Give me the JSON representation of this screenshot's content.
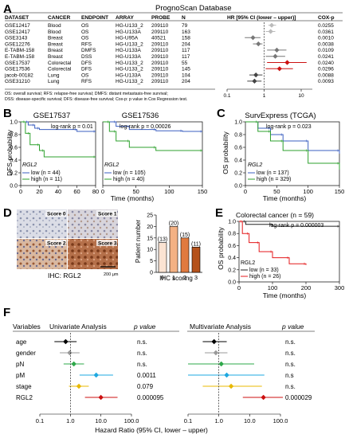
{
  "panel_a": {
    "letter": "A",
    "title": "PrognoScan Database",
    "headers": [
      "DATASET",
      "CANCER",
      "ENDPOINT",
      "ARRAY",
      "PROBE",
      "N"
    ],
    "hr_header": "HR [95% CI (lower – upper)]",
    "cox_header": "COX-p",
    "rows": [
      {
        "dataset": "GSE12417",
        "cancer": "Blood",
        "endpoint": "OS",
        "array": "HG-U133_2",
        "probe": "209110",
        "n": "79",
        "cox": "0.0255",
        "hr": 1.6,
        "lo": 1.3,
        "hi": 2.1,
        "color": "#bbbbbb"
      },
      {
        "dataset": "GSE12417",
        "cancer": "Blood",
        "endpoint": "OS",
        "array": "HG-U133A",
        "probe": "209110",
        "n": "163",
        "cox": "0.0361",
        "hr": 1.5,
        "lo": 1.1,
        "hi": 2.0,
        "color": "#bbbbbb"
      },
      {
        "dataset": "GSE3143",
        "cancer": "Breast",
        "endpoint": "OS",
        "array": "HG-U95A",
        "probe": "40521",
        "n": "158",
        "cox": "0.0010",
        "hr": 0.5,
        "lo": 0.3,
        "hi": 0.8,
        "color": "#777777"
      },
      {
        "dataset": "GSE12276",
        "cancer": "Breast",
        "endpoint": "RFS",
        "array": "HG-U133_2",
        "probe": "209110",
        "n": "204",
        "cox": "0.0038",
        "hr": 0.7,
        "lo": 0.5,
        "hi": 0.9,
        "color": "#777777"
      },
      {
        "dataset": "E-TABM-158",
        "cancer": "Breast",
        "endpoint": "DMFS",
        "array": "HG-U133A",
        "probe": "209110",
        "n": "117",
        "cox": "0.0109",
        "hr": 2.2,
        "lo": 1.2,
        "hi": 4.0,
        "color": "#777777"
      },
      {
        "dataset": "E-TABM-158",
        "cancer": "Breast",
        "endpoint": "DSS",
        "array": "HG-U133A",
        "probe": "209110",
        "n": "117",
        "cox": "0.0241",
        "hr": 2.0,
        "lo": 1.1,
        "hi": 3.7,
        "color": "#777777"
      },
      {
        "dataset": "GSE17537",
        "cancer": "Colorectal",
        "endpoint": "DFS",
        "array": "HG-U133_2",
        "probe": "209110",
        "n": "55",
        "cox": "0.0240",
        "hr": 4.2,
        "lo": 1.2,
        "hi": 14.0,
        "color": "#cc1111"
      },
      {
        "dataset": "GSE17536",
        "cancer": "Colorectal",
        "endpoint": "DFS",
        "array": "HG-U133_2",
        "probe": "209110",
        "n": "145",
        "cox": "0.0296",
        "hr": 2.6,
        "lo": 1.1,
        "hi": 6.0,
        "color": "#cc1111"
      },
      {
        "dataset": "jacob-00182",
        "cancer": "Lung",
        "endpoint": "OS",
        "array": "HG-U133A",
        "probe": "209110",
        "n": "104",
        "cox": "0.0088",
        "hr": 0.6,
        "lo": 0.4,
        "hi": 0.9,
        "color": "#444444"
      },
      {
        "dataset": "GSE31210",
        "cancer": "Lung",
        "endpoint": "RFS",
        "array": "HG-U133_2",
        "probe": "209110",
        "n": "204",
        "cox": "0.0093",
        "hr": 0.55,
        "lo": 0.35,
        "hi": 0.85,
        "color": "#444444"
      }
    ],
    "axis_ticks": [
      "0.1",
      "1",
      "10"
    ],
    "footnote_1": "OS: overall survival; RFS: relapse-free survival; DMFS: distant metastasis-free survival;",
    "footnote_2": "DSS: disease-specific survival; DFS: disease-free survival; Cox-p: p value in Cox Regression test."
  },
  "panel_b": {
    "letter": "B",
    "ylabel": "DFS probability",
    "xlabel": "Time (months)",
    "gene": "RGL2",
    "left": {
      "title": "GSE17537",
      "pvalue": "log-rank p = 0.01",
      "low": "low (n = 44)",
      "high": "high (n = 11)",
      "ticks": [
        "0",
        "20",
        "40",
        "60",
        "80"
      ]
    },
    "right": {
      "title": "GSE17536",
      "pvalue": "log-rank p = 0.00026",
      "low": "low (n = 105)",
      "high": "high (n = 40)",
      "ticks": [
        "0",
        "50",
        "100",
        "150"
      ]
    },
    "yticks": [
      "0.0",
      "0.2",
      "0.4",
      "0.6",
      "0.8",
      "1.0"
    ]
  },
  "panel_c": {
    "letter": "C",
    "title": "SurvExpress (TCGA)",
    "pvalue": "log-rank p = 0.023",
    "ylabel": "OS probability",
    "xlabel": "Time (months)",
    "gene": "RGL2",
    "low": "low (n = 137)",
    "high": "high (n = 329)",
    "xticks": [
      "0",
      "50",
      "100",
      "150"
    ],
    "yticks": [
      "0.0",
      "0.2",
      "0.4",
      "0.6",
      "0.8",
      "1.0"
    ]
  },
  "panel_d": {
    "letter": "D",
    "scores": [
      "Score 0",
      "Score 1",
      "Score 2",
      "Score 3"
    ],
    "caption": "IHC: RGL2",
    "scale": "200 μm",
    "ylabel": "Patient number",
    "xlabel": "IHC scoring",
    "yticks": [
      "0",
      "5",
      "10",
      "15",
      "20",
      "25"
    ]
  },
  "panel_e": {
    "letter": "E",
    "title": "Colorectal cancer (n = 59)",
    "pvalue": "log-rank p = 0.000003",
    "ylabel": "OS probability",
    "xlabel": "Time (months)",
    "gene": "RGL2",
    "low": "low (n = 33)",
    "high": "high (n = 26)",
    "xticks": [
      "0",
      "100",
      "200",
      "300"
    ],
    "yticks": [
      "0.0",
      "0.2",
      "0.4",
      "0.6",
      "0.8",
      "1.0"
    ]
  },
  "panel_f": {
    "letter": "F",
    "variables_header": "Variables",
    "uni_header": "Univariate Analysis",
    "multi_header": "Multivariate Analysis",
    "p_header": "p value",
    "xlabel": "Hazard Ratio (95% CI, lower – upper)",
    "uni_ticks": [
      "0.1",
      "1.0",
      "10.0",
      "100.0"
    ],
    "multi_ticks": [
      "0.1",
      "1.0",
      "10.0",
      "100.0"
    ],
    "rows": [
      {
        "var": "age",
        "color": "#000000",
        "uni_hr": 0.7,
        "uni_lo": 0.3,
        "uni_hi": 1.6,
        "uni_p": "n.s.",
        "multi_hr": 0.7,
        "multi_lo": 0.3,
        "multi_hi": 1.8,
        "multi_p": "n.s."
      },
      {
        "var": "gender",
        "color": "#999999",
        "uni_hr": 0.95,
        "uni_lo": 0.45,
        "uni_hi": 2.0,
        "uni_p": "n.s.",
        "multi_hr": 0.8,
        "multi_lo": 0.35,
        "multi_hi": 1.9,
        "multi_p": "n.s."
      },
      {
        "var": "pN",
        "color": "#2ea84a",
        "uni_hr": 1.3,
        "uni_lo": 0.6,
        "uni_hi": 2.8,
        "uni_p": "n.s.",
        "multi_hr": 1.2,
        "multi_lo": 0.1,
        "multi_hi": 14.0,
        "multi_p": "n.s."
      },
      {
        "var": "pM",
        "color": "#1ea8e0",
        "uni_hr": 7.0,
        "uni_lo": 2.0,
        "uni_hi": 25.0,
        "uni_p": "0.0011",
        "multi_hr": 1.8,
        "multi_lo": 0.1,
        "multi_hi": 30.0,
        "multi_p": "n.s"
      },
      {
        "var": "stage",
        "color": "#e8b800",
        "uni_hr": 1.9,
        "uni_lo": 0.9,
        "uni_hi": 4.0,
        "uni_p": "0.079",
        "multi_hr": 2.5,
        "multi_lo": 0.3,
        "multi_hi": 25.0,
        "multi_p": "n.s."
      },
      {
        "var": "RGL2",
        "color": "#cc1111",
        "uni_hr": 10.0,
        "uni_lo": 3.0,
        "uni_hi": 35.0,
        "uni_p": "0.000095",
        "multi_hr": 28.0,
        "multi_lo": 6.0,
        "multi_hi": 120.0,
        "multi_p": "0.000029"
      }
    ]
  },
  "chart_data": [
    {
      "type": "scatter",
      "title": "PrognoScan Database",
      "xlabel": "HR [95% CI (lower – upper)]",
      "x_scale": "log",
      "series": [
        {
          "values": [
            1.6,
            1.5,
            0.5,
            0.7,
            2.2,
            2.0,
            4.2,
            2.6,
            0.6,
            0.55
          ]
        }
      ]
    },
    {
      "type": "line",
      "title": "GSE17537",
      "xlabel": "Time (months)",
      "ylabel": "DFS probability",
      "series": [
        {
          "name": "low (n = 44)",
          "x": [
            0,
            8,
            15,
            20,
            60,
            80
          ],
          "y": [
            1.0,
            0.95,
            0.9,
            0.88,
            0.85,
            0.85
          ]
        },
        {
          "name": "high (n = 11)",
          "x": [
            0,
            5,
            10,
            20,
            25,
            80
          ],
          "y": [
            1.0,
            0.82,
            0.64,
            0.55,
            0.45,
            0.45
          ]
        }
      ]
    },
    {
      "type": "line",
      "title": "GSE17536",
      "xlabel": "Time (months)",
      "ylabel": "DFS probability",
      "series": [
        {
          "name": "low (n = 105)",
          "x": [
            0,
            20,
            40,
            80,
            120,
            150
          ],
          "y": [
            1.0,
            0.93,
            0.88,
            0.86,
            0.85,
            0.85
          ]
        },
        {
          "name": "high (n = 40)",
          "x": [
            0,
            10,
            20,
            40,
            80,
            150
          ],
          "y": [
            1.0,
            0.85,
            0.7,
            0.6,
            0.55,
            0.55
          ]
        }
      ]
    },
    {
      "type": "line",
      "title": "SurvExpress (TCGA)",
      "xlabel": "Time (months)",
      "ylabel": "OS probability",
      "series": [
        {
          "name": "low (n = 137)",
          "x": [
            0,
            20,
            40,
            60,
            100,
            150
          ],
          "y": [
            1.0,
            0.9,
            0.8,
            0.7,
            0.55,
            0.5
          ]
        },
        {
          "name": "high (n = 329)",
          "x": [
            0,
            20,
            40,
            60,
            100,
            150
          ],
          "y": [
            1.0,
            0.85,
            0.7,
            0.55,
            0.35,
            0.25
          ]
        }
      ]
    },
    {
      "type": "bar",
      "xlabel": "IHC scoring",
      "ylabel": "Patient number",
      "categories": [
        "0",
        "1",
        "2",
        "3"
      ],
      "values": [
        13,
        20,
        15,
        11
      ],
      "colors": [
        "#fbe3d2",
        "#f4b183",
        "#e07a3f",
        "#b5521b"
      ],
      "ylim": [
        0,
        25
      ]
    },
    {
      "type": "line",
      "title": "Colorectal cancer (n = 59)",
      "xlabel": "Time (months)",
      "ylabel": "OS probability",
      "series": [
        {
          "name": "low (n = 33)",
          "x": [
            0,
            20,
            100,
            300
          ],
          "y": [
            1.0,
            0.95,
            0.92,
            0.92
          ]
        },
        {
          "name": "high (n = 26)",
          "x": [
            0,
            10,
            30,
            60,
            100,
            150,
            200
          ],
          "y": [
            1.0,
            0.8,
            0.65,
            0.5,
            0.4,
            0.3,
            0.28
          ]
        }
      ]
    },
    {
      "type": "scatter",
      "title": "Univariate Analysis",
      "xlabel": "Hazard Ratio (95% CI, lower – upper)",
      "x_scale": "log",
      "categories": [
        "age",
        "gender",
        "pN",
        "pM",
        "stage",
        "RGL2"
      ],
      "values": [
        0.7,
        0.95,
        1.3,
        7.0,
        1.9,
        10.0
      ]
    },
    {
      "type": "scatter",
      "title": "Multivariate Analysis",
      "xlabel": "Hazard Ratio (95% CI, lower – upper)",
      "x_scale": "log",
      "categories": [
        "age",
        "gender",
        "pN",
        "pM",
        "stage",
        "RGL2"
      ],
      "values": [
        0.7,
        0.8,
        1.2,
        1.8,
        2.5,
        28.0
      ]
    }
  ]
}
